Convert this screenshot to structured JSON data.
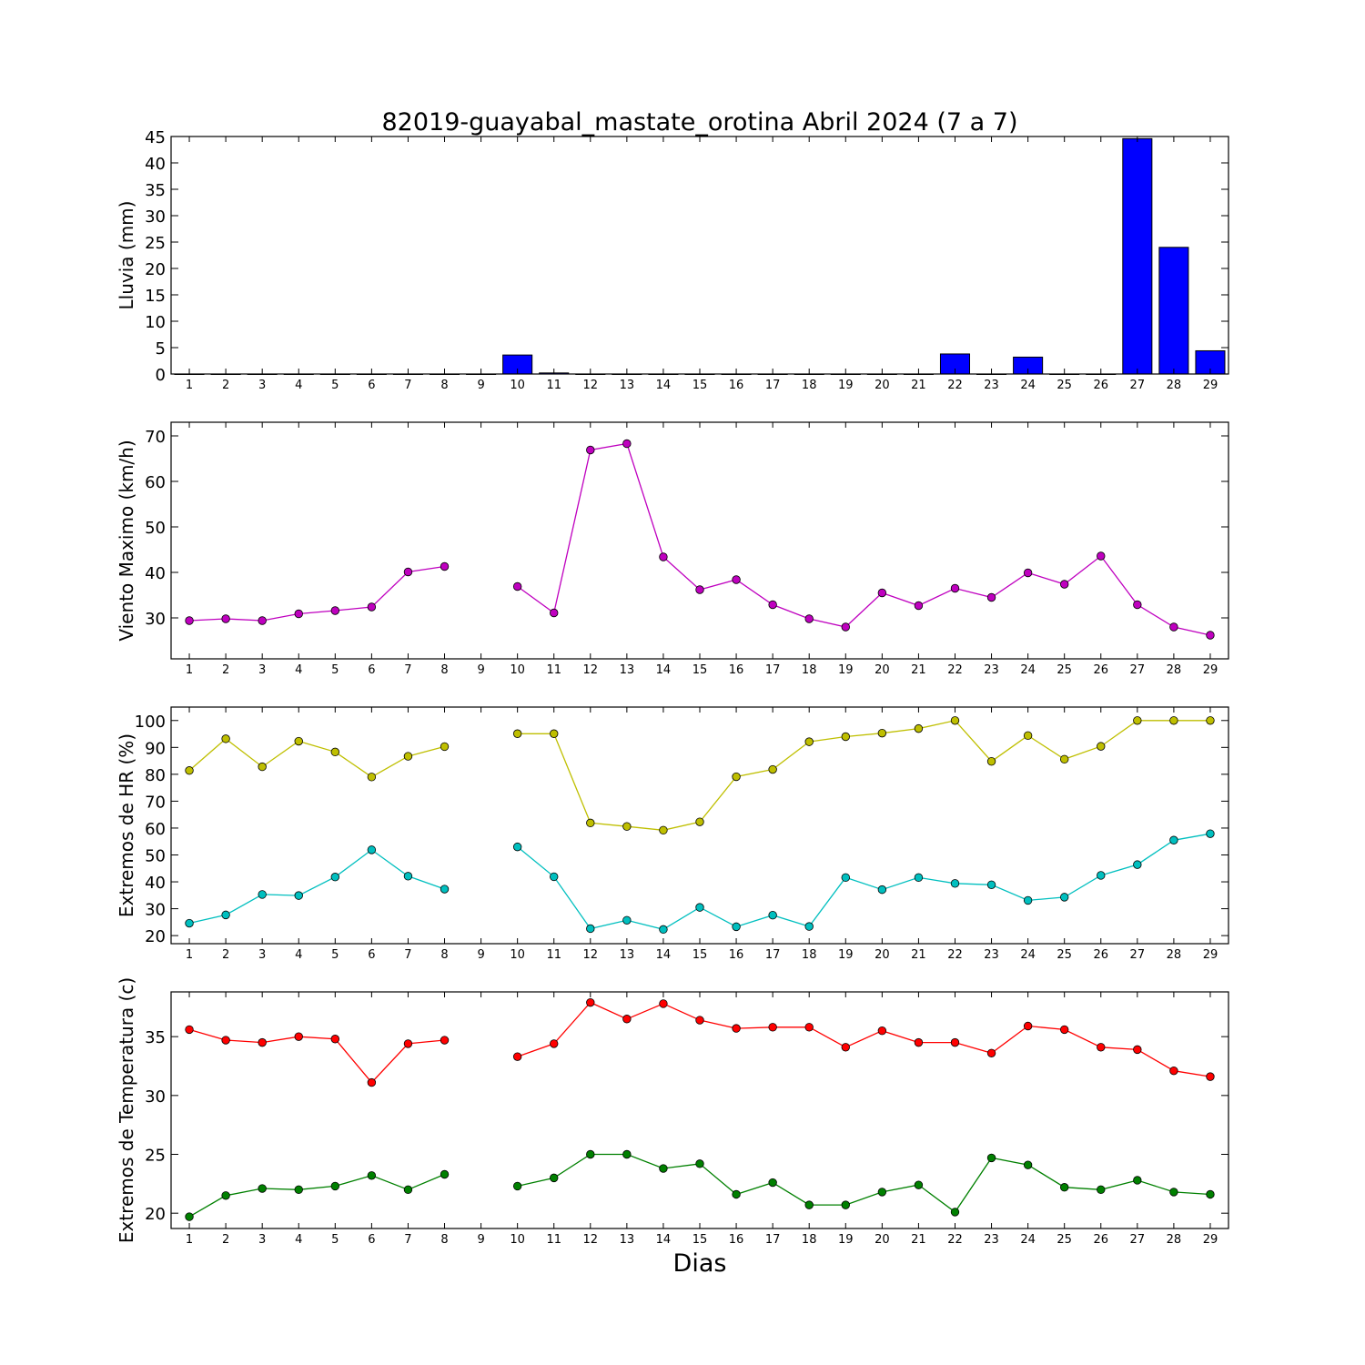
{
  "title": "82019-guayabal_mastate_orotina Abril 2024  (7 a 7)",
  "xlabel": "Dias",
  "colors": {
    "rain_bar": "#0000ff",
    "wind": "#bf00bf",
    "hr_max": "#bfbf00",
    "hr_min": "#00bfbf",
    "temp_max": "#ff0000",
    "temp_min": "#008000"
  },
  "chart_data": [
    {
      "type": "bar",
      "ylabel": "Lluvia (mm)",
      "ylim": [
        0,
        45
      ],
      "yticks": [
        0,
        5,
        10,
        15,
        20,
        25,
        30,
        35,
        40,
        45
      ],
      "categories": [
        1,
        2,
        3,
        4,
        5,
        6,
        7,
        8,
        9,
        10,
        11,
        12,
        13,
        14,
        15,
        16,
        17,
        18,
        19,
        20,
        21,
        22,
        23,
        24,
        25,
        26,
        27,
        28,
        29
      ],
      "values": [
        0,
        0,
        0,
        0,
        0,
        0,
        0,
        0,
        0,
        3.6,
        0.2,
        0,
        0,
        0,
        0,
        0,
        0,
        0,
        0,
        0,
        0,
        3.8,
        0,
        3.2,
        0,
        0,
        44.6,
        24,
        4.4
      ],
      "grid": false
    },
    {
      "type": "line",
      "ylabel": "Viento Maximo (km/h)",
      "ylim": [
        21,
        73
      ],
      "yticks": [
        30,
        40,
        50,
        60,
        70
      ],
      "x": [
        1,
        2,
        3,
        4,
        5,
        6,
        7,
        8,
        9,
        10,
        11,
        12,
        13,
        14,
        15,
        16,
        17,
        18,
        19,
        20,
        21,
        22,
        23,
        24,
        25,
        26,
        27,
        28,
        29
      ],
      "series": [
        {
          "color_key": "wind",
          "values": [
            29.4,
            29.8,
            29.4,
            30.9,
            31.6,
            32.4,
            40.1,
            41.3,
            null,
            36.9,
            31.1,
            66.9,
            68.3,
            43.4,
            36.2,
            38.4,
            32.9,
            29.8,
            28,
            35.5,
            32.7,
            36.5,
            34.5,
            39.9,
            37.4,
            43.6,
            32.9,
            28,
            26.2
          ]
        }
      ],
      "grid": false
    },
    {
      "type": "line",
      "ylabel": "Extremos de HR (%)",
      "ylim": [
        17,
        105
      ],
      "yticks": [
        20,
        30,
        40,
        50,
        60,
        70,
        80,
        90,
        100
      ],
      "x": [
        1,
        2,
        3,
        4,
        5,
        6,
        7,
        8,
        9,
        10,
        11,
        12,
        13,
        14,
        15,
        16,
        17,
        18,
        19,
        20,
        21,
        22,
        23,
        24,
        25,
        26,
        27,
        28,
        29
      ],
      "series": [
        {
          "color_key": "hr_max",
          "values": [
            81.4,
            93.2,
            82.8,
            92.3,
            88.3,
            79,
            86.7,
            90.3,
            null,
            95.1,
            95.1,
            61.9,
            60.6,
            59.2,
            62.3,
            79.1,
            81.8,
            92.1,
            94,
            95.3,
            97,
            100,
            84.8,
            94.4,
            85.6,
            90.4,
            100,
            100,
            100
          ]
        },
        {
          "color_key": "hr_min",
          "values": [
            24.6,
            27.7,
            35.3,
            34.9,
            41.8,
            51.9,
            42.1,
            37.3,
            null,
            53,
            41.9,
            22.6,
            25.7,
            22.3,
            30.5,
            23.3,
            27.6,
            23.4,
            41.6,
            37.1,
            41.6,
            39.4,
            38.9,
            33.1,
            34.3,
            42.4,
            46.4,
            55.5,
            57.9
          ]
        }
      ],
      "grid": false
    },
    {
      "type": "line",
      "ylabel": "Extremos de Temperatura (c)",
      "ylim": [
        18.7,
        38.8
      ],
      "yticks": [
        20,
        25,
        30,
        35
      ],
      "x": [
        1,
        2,
        3,
        4,
        5,
        6,
        7,
        8,
        9,
        10,
        11,
        12,
        13,
        14,
        15,
        16,
        17,
        18,
        19,
        20,
        21,
        22,
        23,
        24,
        25,
        26,
        27,
        28,
        29
      ],
      "series": [
        {
          "color_key": "temp_max",
          "values": [
            35.6,
            34.7,
            34.5,
            35,
            34.8,
            31.1,
            34.4,
            34.7,
            null,
            33.3,
            34.4,
            37.9,
            36.5,
            37.8,
            36.4,
            35.7,
            35.8,
            35.8,
            34.1,
            35.5,
            34.5,
            34.5,
            33.6,
            35.9,
            35.6,
            34.1,
            33.9,
            32.1,
            31.6
          ]
        },
        {
          "color_key": "temp_min",
          "values": [
            19.7,
            21.5,
            22.1,
            22,
            22.3,
            23.2,
            22,
            23.3,
            null,
            22.3,
            23,
            25,
            25,
            23.8,
            24.2,
            21.6,
            22.6,
            20.7,
            20.7,
            21.8,
            22.4,
            20.1,
            24.7,
            24.1,
            22.2,
            22,
            22.8,
            21.8,
            21.6
          ]
        }
      ],
      "grid": false
    }
  ]
}
